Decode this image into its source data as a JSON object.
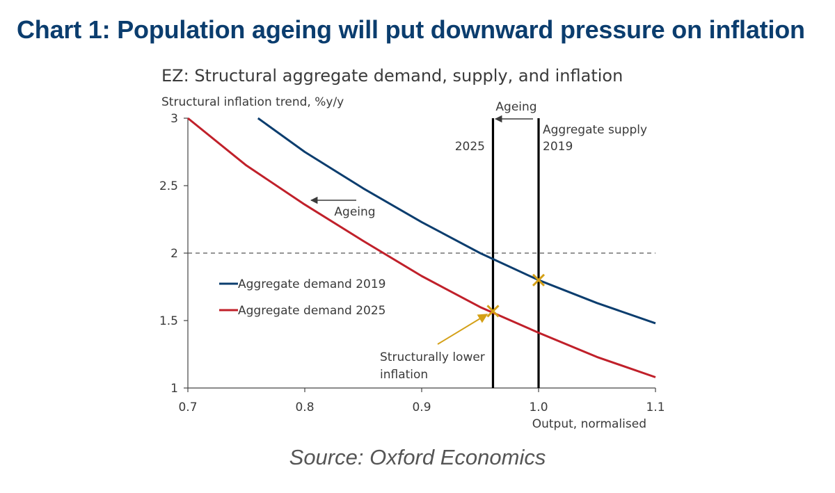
{
  "title": "Chart 1: Population ageing will put downward pressure on inflation",
  "source": "Source: Oxford Economics",
  "chart_data": {
    "type": "line",
    "subtitle": "EZ: Structural aggregate demand, supply, and inflation",
    "ylabel": "Structural inflation trend, %y/y",
    "xlabel": "Output, normalised",
    "xlim": [
      0.7,
      1.1
    ],
    "ylim": [
      1,
      3
    ],
    "x_ticks": [
      "0.7",
      "0.8",
      "0.9",
      "1.0",
      "1.1"
    ],
    "x_tick_values": [
      0.7,
      0.8,
      0.9,
      1.0,
      1.1
    ],
    "y_ticks": [
      "1",
      "1.5",
      "2",
      "2.5",
      "3"
    ],
    "y_tick_values": [
      1,
      1.5,
      2,
      2.5,
      3
    ],
    "grid": false,
    "reference_line": {
      "y": 2,
      "style": "dashed"
    },
    "series": [
      {
        "name": "Aggregate demand 2019",
        "color": "#0b3d6e",
        "x": [
          0.76,
          0.8,
          0.85,
          0.9,
          0.95,
          1.0,
          1.05,
          1.1
        ],
        "y": [
          3.0,
          2.75,
          2.48,
          2.23,
          2.0,
          1.8,
          1.63,
          1.48
        ]
      },
      {
        "name": "Aggregate demand 2025",
        "color": "#c0202a",
        "x": [
          0.7,
          0.75,
          0.8,
          0.85,
          0.9,
          0.95,
          1.0,
          1.05,
          1.1
        ],
        "y": [
          3.0,
          2.65,
          2.36,
          2.09,
          1.83,
          1.6,
          1.41,
          1.23,
          1.08
        ]
      }
    ],
    "vertical_lines": [
      {
        "x": 0.961,
        "label": "2025"
      },
      {
        "x": 1.0,
        "label": "Aggregate supply 2019"
      }
    ],
    "markers": [
      {
        "x": 1.0,
        "y": 1.8,
        "shape": "x",
        "color": "#d4a017"
      },
      {
        "x": 0.961,
        "y": 1.57,
        "shape": "x",
        "color": "#d4a017"
      }
    ],
    "annotations": {
      "ageing_top": "Ageing",
      "ageing_demand": "Ageing",
      "supply_label_line1": "Aggregate supply",
      "supply_label_line2": "2019",
      "year_2025": "2025",
      "lower_line1": "Structurally lower",
      "lower_line2": "inflation"
    },
    "legend_position": "left-middle"
  }
}
